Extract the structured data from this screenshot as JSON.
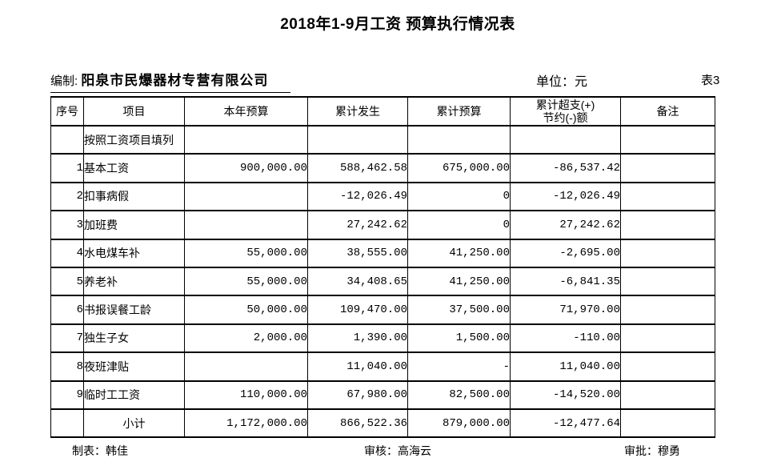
{
  "page": {
    "title": "2018年1-9月工资 预算执行情况表"
  },
  "meta": {
    "prepared_by_label": "编制:",
    "company": "阳泉市民爆器材专营有限公司",
    "unit_label": "单位：元",
    "sheet_no": "表3"
  },
  "colors": {
    "text": "#000000",
    "background": "#ffffff",
    "border": "#000000"
  },
  "table": {
    "columns": [
      {
        "key": "seq",
        "label": "序号"
      },
      {
        "key": "item",
        "label": "项目"
      },
      {
        "key": "annual_budget",
        "label": "本年预算"
      },
      {
        "key": "cumulative_actual",
        "label": "累计发生"
      },
      {
        "key": "cumulative_budget",
        "label": "累计预算"
      },
      {
        "key": "over_saving",
        "label": "累计超支(+)",
        "label2": "节约(-)额"
      },
      {
        "key": "note",
        "label": "备注"
      }
    ],
    "rows": [
      [
        "",
        "按照工资项目填列",
        "",
        "",
        "",
        "",
        ""
      ],
      [
        "1",
        "基本工资",
        "900,000.00",
        "588,462.58",
        "675,000.00",
        "-86,537.42",
        ""
      ],
      [
        "2",
        "扣事病假",
        "",
        "-12,026.49",
        "0",
        "-12,026.49",
        ""
      ],
      [
        "3",
        "加班费",
        "",
        "27,242.62",
        "0",
        "27,242.62",
        ""
      ],
      [
        "4",
        "水电煤车补",
        "55,000.00",
        "38,555.00",
        "41,250.00",
        "-2,695.00",
        ""
      ],
      [
        "5",
        "养老补",
        "55,000.00",
        "34,408.65",
        "41,250.00",
        "-6,841.35",
        ""
      ],
      [
        "6",
        "书报误餐工龄",
        "50,000.00",
        "109,470.00",
        "37,500.00",
        "71,970.00",
        ""
      ],
      [
        "7",
        "独生子女",
        "2,000.00",
        "1,390.00",
        "1,500.00",
        "-110.00",
        ""
      ],
      [
        "8",
        "夜班津贴",
        "",
        "11,040.00",
        "-",
        "11,040.00",
        ""
      ],
      [
        "9",
        "临时工工资",
        "110,000.00",
        "67,980.00",
        "82,500.00",
        "-14,520.00",
        ""
      ],
      [
        "",
        "小计",
        "1,172,000.00",
        "866,522.36",
        "879,000.00",
        "-12,477.64",
        ""
      ]
    ]
  },
  "footer": {
    "maker": "制表：韩佳",
    "reviewer": "审核：高海云",
    "approver": "审批：穆勇"
  }
}
